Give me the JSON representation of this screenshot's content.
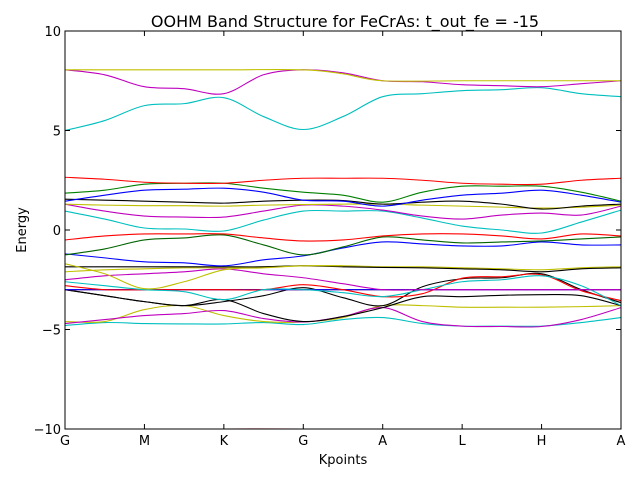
{
  "chart_data": {
    "type": "line",
    "title": "OOHM Band Structure for FeCrAs: t_out_fe = -15",
    "xlabel": "Kpoints",
    "ylabel": "Energy",
    "ylim": [
      -10,
      10
    ],
    "xlim": [
      0,
      7
    ],
    "yticks": [
      -10,
      -5,
      0,
      5,
      10
    ],
    "ytick_labels": [
      "−10",
      "−5",
      "0",
      "5",
      "10"
    ],
    "x_tick_labels": [
      "G",
      "M",
      "K",
      "G",
      "A",
      "L",
      "H",
      "A"
    ],
    "grid": false,
    "legend": "none",
    "series": [
      {
        "color": "#ff0000",
        "x": [
          0,
          1,
          2,
          3,
          3.2
        ],
        "y": [
          -10,
          -10,
          -10,
          -10,
          -10.05
        ]
      },
      {
        "color": "#00bfbf",
        "x": [
          0,
          0.5,
          1,
          1.5,
          2,
          2.5,
          3,
          3.5,
          4,
          4.5,
          5,
          5.5,
          6,
          6.5,
          7
        ],
        "y": [
          -4.8,
          -4.65,
          -4.7,
          -4.72,
          -4.72,
          -4.65,
          -4.75,
          -4.5,
          -4.4,
          -4.7,
          -4.83,
          -4.83,
          -4.83,
          -4.65,
          -4.4
        ]
      },
      {
        "color": "#bfbf00",
        "x": [
          0,
          0.5,
          1,
          1.5,
          2,
          2.5,
          3,
          3.5,
          4,
          4.5,
          5,
          5.5,
          6,
          6.5,
          7
        ],
        "y": [
          -4.6,
          -4.6,
          -4.0,
          -3.8,
          -4.3,
          -4.6,
          -4.62,
          -4.4,
          -3.8,
          -3.8,
          -3.88,
          -3.88,
          -3.88,
          -3.85,
          -3.8
        ]
      },
      {
        "color": "#bf00bf",
        "x": [
          0,
          0.5,
          1,
          1.5,
          2,
          2.5,
          3,
          3.5,
          4,
          4.5,
          5,
          5.5,
          6,
          6.5,
          7
        ],
        "y": [
          -4.7,
          -4.5,
          -4.3,
          -4.2,
          -4.05,
          -4.45,
          -4.62,
          -4.35,
          -3.9,
          -4.6,
          -4.83,
          -4.85,
          -4.85,
          -4.5,
          -3.9
        ]
      },
      {
        "color": "#000000",
        "x": [
          0,
          0.5,
          1,
          1.5,
          2,
          2.5,
          3,
          3.5,
          4,
          4.5,
          5,
          5.5,
          6,
          6.5,
          7
        ],
        "y": [
          -3.0,
          -3.3,
          -3.6,
          -3.8,
          -3.5,
          -4.2,
          -4.6,
          -4.35,
          -3.9,
          -3.35,
          -3.35,
          -3.28,
          -3.25,
          -3.3,
          -3.8
        ]
      },
      {
        "color": "#000000",
        "x": [
          0,
          0.5,
          1,
          1.5,
          2,
          2.5,
          3,
          3.5,
          4,
          4.5,
          5,
          5.5,
          6,
          6.5,
          7
        ],
        "y": [
          -3.0,
          -3.3,
          -3.6,
          -3.8,
          -3.6,
          -3.3,
          -2.9,
          -3.4,
          -3.8,
          -2.85,
          -2.45,
          -2.4,
          -2.2,
          -3.0,
          -3.65
        ]
      },
      {
        "color": "#bf0000",
        "x": [
          0,
          7
        ],
        "y": [
          -3.0,
          -3.0
        ]
      },
      {
        "color": "#0000ff",
        "x": [
          0,
          4,
          7
        ],
        "y": [
          -3.0,
          -3.0,
          -3.0
        ]
      },
      {
        "color": "#ff0000",
        "x": [
          0,
          0.5,
          1,
          1.5,
          2,
          2.5,
          3,
          3.5,
          4,
          4.5,
          5,
          5.5,
          6,
          6.5,
          7
        ],
        "y": [
          -2.8,
          -3.0,
          -3.0,
          -3.0,
          -3.0,
          -3.0,
          -2.75,
          -3.0,
          -3.35,
          -3.2,
          -2.42,
          -2.35,
          -2.25,
          -3.05,
          -3.55
        ]
      },
      {
        "color": "#00bfbf",
        "x": [
          0,
          0.5,
          1,
          1.5,
          2,
          2.5,
          3,
          3.5,
          4,
          4.5,
          5,
          5.5,
          6,
          6.5,
          7
        ],
        "y": [
          -2.6,
          -2.8,
          -3.0,
          -3.1,
          -3.5,
          -3.0,
          -3.0,
          -3.15,
          -3.35,
          -3.0,
          -2.6,
          -2.5,
          -2.3,
          -2.8,
          -3.8
        ]
      },
      {
        "color": "#bf00bf",
        "x": [
          0,
          0.5,
          1,
          1.5,
          2,
          2.5,
          3,
          3.5,
          4,
          4.5,
          5,
          5.5,
          6,
          6.5,
          7
        ],
        "y": [
          -2.5,
          -2.3,
          -2.2,
          -2.1,
          -1.95,
          -2.2,
          -2.4,
          -2.7,
          -3.0,
          -3.0,
          -3.0,
          -3.0,
          -3.0,
          -3.0,
          -3.0
        ]
      },
      {
        "color": "#bfbf00",
        "x": [
          0,
          0.5,
          1,
          1.5,
          2,
          2.5,
          3,
          3.5,
          4,
          4.5,
          5,
          5.5,
          6,
          6.5,
          7
        ],
        "y": [
          -2.1,
          -2.0,
          -1.95,
          -1.9,
          -1.9,
          -1.85,
          -1.8,
          -1.8,
          -1.85,
          -1.85,
          -1.9,
          -1.95,
          -2.0,
          -1.9,
          -1.85
        ]
      },
      {
        "color": "#000000",
        "x": [
          0,
          0.5,
          1,
          1.5,
          2,
          2.5,
          3,
          3.5,
          4,
          4.5,
          5,
          5.5,
          6,
          6.5,
          7
        ],
        "y": [
          -1.85,
          -1.85,
          -1.85,
          -1.85,
          -1.85,
          -1.85,
          -1.8,
          -1.85,
          -1.88,
          -1.9,
          -1.95,
          -2.0,
          -2.1,
          -1.95,
          -1.9
        ]
      },
      {
        "color": "#bfbf00",
        "x": [
          0,
          0.5,
          1,
          1.5,
          2,
          2.5,
          3,
          3.5
        ],
        "y": [
          -1.7,
          -2.2,
          -2.95,
          -2.6,
          -2.0,
          -1.9,
          -1.8,
          -1.8
        ]
      },
      {
        "color": "#0000ff",
        "x": [
          0,
          0.5,
          1,
          1.5,
          2,
          2.5,
          3,
          3.5,
          4,
          4.5,
          5,
          5.5,
          6,
          6.5,
          7
        ],
        "y": [
          -1.2,
          -1.4,
          -1.6,
          -1.65,
          -1.8,
          -1.5,
          -1.3,
          -0.9,
          -0.6,
          -0.7,
          -0.8,
          -0.8,
          -0.6,
          -0.75,
          -0.75
        ]
      },
      {
        "color": "#006400",
        "x": [
          0,
          0.5,
          1,
          1.5,
          2,
          2.5,
          3,
          3.5,
          4,
          4.5,
          5,
          5.5,
          6,
          6.5,
          7
        ],
        "y": [
          -1.25,
          -0.95,
          -0.5,
          -0.4,
          -0.25,
          -0.75,
          -1.25,
          -0.85,
          -0.35,
          -0.5,
          -0.65,
          -0.6,
          -0.55,
          -0.45,
          -0.35
        ]
      },
      {
        "color": "#ff0000",
        "x": [
          0,
          0.5,
          1,
          1.5,
          2,
          2.5,
          3,
          3.5,
          4,
          4.5,
          5,
          5.5,
          6,
          6.5,
          7
        ],
        "y": [
          -0.5,
          -0.3,
          -0.2,
          -0.2,
          -0.2,
          -0.4,
          -0.55,
          -0.5,
          -0.3,
          -0.2,
          -0.2,
          -0.3,
          -0.45,
          -0.2,
          -0.3
        ]
      },
      {
        "color": "#00bfbf",
        "x": [
          0,
          0.5,
          1,
          1.5,
          2,
          2.5,
          3,
          3.5,
          4,
          4.5,
          5,
          5.5,
          6,
          6.5,
          7
        ],
        "y": [
          0.95,
          0.55,
          0.1,
          0.05,
          -0.05,
          0.5,
          0.95,
          0.95,
          0.95,
          0.6,
          0.2,
          0.0,
          -0.15,
          0.4,
          1.0
        ]
      },
      {
        "color": "#bf00bf",
        "x": [
          0,
          0.5,
          1,
          1.5,
          2,
          2.5,
          3,
          3.5,
          4,
          4.5,
          5,
          5.5,
          6,
          6.5,
          7
        ],
        "y": [
          1.3,
          0.95,
          0.7,
          0.65,
          0.65,
          0.95,
          1.25,
          1.2,
          1.0,
          0.7,
          0.55,
          0.75,
          0.85,
          0.75,
          1.2
        ]
      },
      {
        "color": "#bfbf00",
        "x": [
          0,
          0.5,
          1,
          1.5,
          2,
          2.5,
          3,
          3.5,
          4,
          4.5,
          5,
          5.5,
          6,
          6.5,
          7
        ],
        "y": [
          1.3,
          1.25,
          1.22,
          1.22,
          1.2,
          1.25,
          1.28,
          1.3,
          1.3,
          1.25,
          1.2,
          1.15,
          1.1,
          1.15,
          1.25
        ]
      },
      {
        "color": "#000000",
        "x": [
          0,
          0.5,
          1,
          1.5,
          2,
          2.5,
          3,
          3.5,
          4,
          4.5,
          5,
          5.5,
          6,
          6.5,
          7
        ],
        "y": [
          1.55,
          1.5,
          1.45,
          1.4,
          1.35,
          1.45,
          1.5,
          1.48,
          1.3,
          1.4,
          1.45,
          1.3,
          1.05,
          1.2,
          1.3
        ]
      },
      {
        "color": "#0000ff",
        "x": [
          0,
          0.5,
          1,
          1.5,
          2,
          2.5,
          3,
          3.5,
          4,
          4.5,
          5,
          5.5,
          6,
          6.5,
          7
        ],
        "y": [
          1.45,
          1.75,
          2.0,
          2.05,
          2.1,
          1.9,
          1.5,
          1.45,
          1.2,
          1.5,
          1.75,
          1.85,
          2.0,
          1.75,
          1.4
        ]
      },
      {
        "color": "#008000",
        "x": [
          0,
          0.5,
          1,
          1.5,
          2,
          2.5,
          3,
          3.5,
          4,
          4.5,
          5,
          5.5,
          6,
          6.5,
          7
        ],
        "y": [
          1.85,
          2.0,
          2.3,
          2.35,
          2.35,
          2.1,
          1.9,
          1.75,
          1.4,
          1.9,
          2.2,
          2.2,
          2.2,
          1.9,
          1.45
        ]
      },
      {
        "color": "#ff0000",
        "x": [
          0,
          0.5,
          1,
          1.5,
          2,
          2.5,
          3,
          3.5,
          4,
          4.5,
          5,
          5.5,
          6,
          6.5,
          7
        ],
        "y": [
          2.65,
          2.55,
          2.4,
          2.35,
          2.35,
          2.5,
          2.6,
          2.6,
          2.6,
          2.5,
          2.35,
          2.3,
          2.3,
          2.5,
          2.6
        ]
      },
      {
        "color": "#00bfbf",
        "x": [
          0,
          0.5,
          1,
          1.5,
          2,
          2.5,
          3,
          3.5,
          4,
          4.5,
          5,
          5.5,
          6,
          6.5,
          7
        ],
        "y": [
          5.0,
          5.5,
          6.25,
          6.35,
          6.65,
          5.7,
          5.05,
          5.7,
          6.7,
          6.85,
          7.0,
          7.05,
          7.15,
          6.85,
          6.7
        ]
      },
      {
        "color": "#bf00bf",
        "x": [
          0,
          0.5,
          1,
          1.5,
          2,
          2.5,
          3,
          3.5,
          4,
          4.5,
          5,
          5.5,
          6,
          6.5,
          7
        ],
        "y": [
          8.05,
          7.8,
          7.2,
          7.1,
          6.85,
          7.8,
          8.05,
          7.9,
          7.5,
          7.45,
          7.3,
          7.25,
          7.2,
          7.35,
          7.5
        ]
      },
      {
        "color": "#bfbf00",
        "x": [
          0,
          1,
          2,
          3,
          3.5,
          4,
          5,
          6,
          7
        ],
        "y": [
          8.05,
          8.05,
          8.05,
          8.05,
          7.85,
          7.5,
          7.5,
          7.5,
          7.5
        ]
      }
    ]
  }
}
